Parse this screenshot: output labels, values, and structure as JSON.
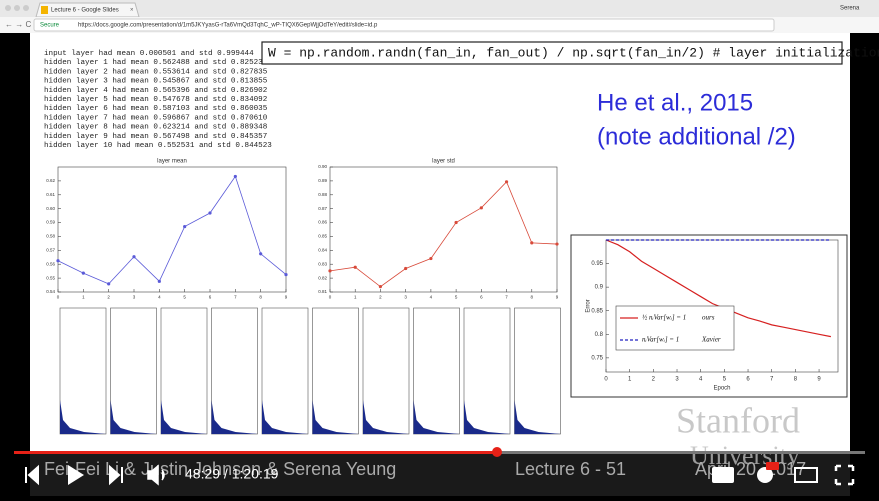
{
  "browser": {
    "tab_title": "Lecture 6 - Google Slides",
    "secure": "Secure",
    "url": "https://docs.google.com/presentation/d/1m5JKYyasG-rTa6VmQd3TqhC_wP-TIQX6GepWjjOdTeY/edit#slide=id.p",
    "user": "Serena"
  },
  "slide": {
    "log": [
      "input layer had mean 0.000501 and std 0.999444",
      "hidden layer 1 had mean 0.562488 and std 0.825232",
      "hidden layer 2 had mean 0.553614 and std 0.827835",
      "hidden layer 3 had mean 0.545867 and std 0.813855",
      "hidden layer 4 had mean 0.565396 and std 0.826902",
      "hidden layer 5 had mean 0.547678 and std 0.834092",
      "hidden layer 6 had mean 0.587103 and std 0.860035",
      "hidden layer 7 had mean 0.596867 and std 0.870610",
      "hidden layer 8 had mean 0.623214 and std 0.889348",
      "hidden layer 9 had mean 0.567498 and std 0.845357",
      "hidden layer 10 had mean 0.552531 and std 0.844523"
    ],
    "code": "W = np.random.randn(fan_in, fan_out) / np.sqrt(fan_in/2) # layer initialization",
    "citation": [
      "He et al., 2015",
      "(note additional /2)"
    ],
    "mean_chart": {
      "type": "line",
      "title": "layer mean",
      "x": [
        0,
        1,
        2,
        3,
        4,
        5,
        6,
        7,
        8,
        9
      ],
      "values": [
        0.562488,
        0.553614,
        0.545867,
        0.565396,
        0.547678,
        0.587103,
        0.596867,
        0.623214,
        0.567498,
        0.552531
      ],
      "color": "#5a5ad8",
      "xlim": [
        0,
        9
      ],
      "ylim": [
        0.54,
        0.63
      ],
      "xticks": [
        0,
        1,
        2,
        3,
        4,
        5,
        6,
        7,
        8,
        9
      ],
      "yticks": [
        0.54,
        0.55,
        0.56,
        0.57,
        0.58,
        0.59,
        {
          "value": 0.6,
          "label": "0.60"
        },
        0.61,
        0.62
      ]
    },
    "std_chart": {
      "type": "line",
      "title": "layer std",
      "x": [
        0,
        1,
        2,
        3,
        4,
        5,
        6,
        7,
        8,
        9
      ],
      "values": [
        0.825232,
        0.827835,
        0.813855,
        0.826902,
        0.834092,
        0.860035,
        0.87061,
        0.889348,
        0.845357,
        0.844523
      ],
      "color": "#d84a3a",
      "xlim": [
        0,
        9
      ],
      "ylim": [
        0.81,
        0.9
      ],
      "xticks": [
        0,
        1,
        2,
        3,
        4,
        5,
        6,
        7,
        8,
        9
      ],
      "yticks": [
        0.81,
        0.82,
        0.83,
        0.84,
        0.85,
        0.86,
        0.87,
        0.88,
        0.89,
        {
          "value": 0.9,
          "label": "0.90"
        }
      ]
    },
    "error_chart": {
      "type": "line",
      "xlabel": "Epoch",
      "ylabel": "Error",
      "x": [
        0,
        0.5,
        1,
        1.5,
        2,
        2.5,
        3,
        3.5,
        4,
        4.5,
        5,
        5.5,
        6,
        6.5,
        7,
        7.5,
        8,
        8.5,
        9,
        9.5
      ],
      "series": [
        {
          "name": "ours",
          "formula": "½ nᵢVar[wᵢ] = 1",
          "color": "#d62020",
          "values": [
            1.0,
            0.99,
            0.975,
            0.955,
            0.94,
            0.925,
            0.91,
            0.895,
            0.88,
            0.865,
            0.855,
            0.845,
            0.835,
            0.828,
            0.82,
            0.815,
            0.81,
            0.805,
            0.8,
            0.795
          ]
        },
        {
          "name": "Xavier",
          "formula": "nᵢVar[wᵢ] = 1",
          "color": "#2020c0",
          "values": [
            1.0,
            1.0,
            1.0,
            1.0,
            1.0,
            1.0,
            1.0,
            1.0,
            1.0,
            1.0,
            1.0,
            1.0,
            1.0,
            1.0,
            1.0,
            1.0,
            1.0,
            1.0,
            1.0,
            1.0
          ]
        }
      ],
      "xlim": [
        0,
        9.8
      ],
      "ylim": [
        0.72,
        1.0
      ],
      "xticks": [
        0,
        1,
        2,
        3,
        4,
        5,
        6,
        7,
        8,
        9
      ],
      "yticks": [
        0.75,
        0.8,
        0.85,
        0.9,
        0.95
      ]
    }
  },
  "footer": {
    "authors": "Fei-Fei Li & Justin Johnson & Serena Yeung",
    "lecture": "Lecture 6 - 51",
    "date": "April 20, 2017",
    "watermark": [
      "Stanford",
      "University"
    ]
  },
  "player": {
    "time": "48:29 / 1:20:19"
  }
}
